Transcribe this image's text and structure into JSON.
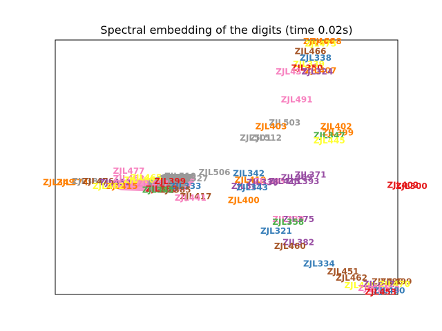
{
  "chart_data": {
    "type": "scatter",
    "title": "Spectral embedding of the digits (time 0.02s)",
    "xlabel": "",
    "ylabel": "",
    "xlim": [
      0,
      100
    ],
    "ylim": [
      0,
      100
    ],
    "axes_ticks": false,
    "grid": false,
    "points": [
      {
        "label": "ZJL466",
        "x": 77.0,
        "y": 99.5,
        "color": "#ff7f00"
      },
      {
        "label": "ZJL448",
        "x": 79.0,
        "y": 99.5,
        "color": "#ff7f00"
      },
      {
        "label": "ZJL473",
        "x": 77.5,
        "y": 98.5,
        "color": "#ffff33"
      },
      {
        "label": "ZJL466",
        "x": 74.5,
        "y": 95.5,
        "color": "#a65628"
      },
      {
        "label": "ZJL338",
        "x": 76.0,
        "y": 93.0,
        "color": "#377eb8"
      },
      {
        "label": "ZJL339",
        "x": 74.0,
        "y": 90.5,
        "color": "#ffff33"
      },
      {
        "label": "ZJL350",
        "x": 73.5,
        "y": 89.0,
        "color": "#e41a1c"
      },
      {
        "label": "ZJL437",
        "x": 69.0,
        "y": 87.5,
        "color": "#f781bf"
      },
      {
        "label": "ZJL407",
        "x": 77.5,
        "y": 88.0,
        "color": "#ff7f00"
      },
      {
        "label": "ZJL324",
        "x": 76.5,
        "y": 87.5,
        "color": "#984ea3"
      },
      {
        "label": "ZJL491",
        "x": 70.5,
        "y": 76.5,
        "color": "#f781bf"
      },
      {
        "label": "ZJL503",
        "x": 67.0,
        "y": 67.5,
        "color": "#999999"
      },
      {
        "label": "ZJL403",
        "x": 63.0,
        "y": 66.0,
        "color": "#ff7f00"
      },
      {
        "label": "ZJL402",
        "x": 82.0,
        "y": 66.0,
        "color": "#ff7f00"
      },
      {
        "label": "ZJL399",
        "x": 82.5,
        "y": 63.5,
        "color": "#ff7f00"
      },
      {
        "label": "ZJL347",
        "x": 80.0,
        "y": 62.5,
        "color": "#4daf4a"
      },
      {
        "label": "ZJL445",
        "x": 80.0,
        "y": 60.5,
        "color": "#ffff33"
      },
      {
        "label": "ZJL501",
        "x": 58.5,
        "y": 61.5,
        "color": "#999999"
      },
      {
        "label": "ZJL512",
        "x": 61.5,
        "y": 61.5,
        "color": "#999999"
      },
      {
        "label": "ZJL342",
        "x": 56.5,
        "y": 47.5,
        "color": "#377eb8"
      },
      {
        "label": "ZJL506",
        "x": 46.5,
        "y": 48.0,
        "color": "#999999"
      },
      {
        "label": "ZJL510",
        "x": 36.5,
        "y": 46.5,
        "color": "#999999"
      },
      {
        "label": "ZJL527",
        "x": 40.0,
        "y": 45.5,
        "color": "#999999"
      },
      {
        "label": "ZJL477",
        "x": 21.5,
        "y": 48.5,
        "color": "#f781bf"
      },
      {
        "label": "ZJL419",
        "x": 57.0,
        "y": 45.0,
        "color": "#ff7f00"
      },
      {
        "label": "ZJL383",
        "x": 62.5,
        "y": 44.5,
        "color": "#f781bf"
      },
      {
        "label": "ZJL336",
        "x": 60.5,
        "y": 44.0,
        "color": "#984ea3"
      },
      {
        "label": "ZJL311",
        "x": 56.0,
        "y": 42.5,
        "color": "#984ea3"
      },
      {
        "label": "ZJL343",
        "x": 57.5,
        "y": 42.0,
        "color": "#377eb8"
      },
      {
        "label": "ZJL371",
        "x": 74.5,
        "y": 47.0,
        "color": "#984ea3"
      },
      {
        "label": "ZJL369",
        "x": 70.5,
        "y": 46.0,
        "color": "#984ea3"
      },
      {
        "label": "ZJL393",
        "x": 72.5,
        "y": 44.5,
        "color": "#984ea3"
      },
      {
        "label": "ZJL413",
        "x": 67.0,
        "y": 44.5,
        "color": "#984ea3"
      },
      {
        "label": "ZJL400",
        "x": 55.0,
        "y": 37.0,
        "color": "#ff7f00"
      },
      {
        "label": "ZJL402",
        "x": 101.5,
        "y": 43.0,
        "color": "#e41a1c"
      },
      {
        "label": "ZJL300",
        "x": 104.0,
        "y": 42.5,
        "color": "#e41a1c"
      },
      {
        "label": "ZJL349",
        "x": 1.0,
        "y": 44.0,
        "color": "#ff7f00"
      },
      {
        "label": "ZJL374",
        "x": 5.0,
        "y": 44.0,
        "color": "#ff7f00"
      },
      {
        "label": "ZJL388",
        "x": 9.5,
        "y": 44.5,
        "color": "#999999"
      },
      {
        "label": "ZJL476",
        "x": 12.5,
        "y": 44.5,
        "color": "#a65628"
      },
      {
        "label": "ZJL452",
        "x": 17.5,
        "y": 44.0,
        "color": "#984ea3"
      },
      {
        "label": "ZJL463",
        "x": 21.5,
        "y": 45.5,
        "color": "#f781bf"
      },
      {
        "label": "ZJL480",
        "x": 24.5,
        "y": 45.0,
        "color": "#ffff33"
      },
      {
        "label": "ZJL465",
        "x": 26.5,
        "y": 46.0,
        "color": "#ffff33"
      },
      {
        "label": "ZJL415",
        "x": 19.5,
        "y": 42.5,
        "color": "#ff7f00"
      },
      {
        "label": "ZJL462",
        "x": 15.5,
        "y": 42.5,
        "color": "#ffff33"
      },
      {
        "label": "ZJL497",
        "x": 28.5,
        "y": 43.5,
        "color": "#f781bf"
      },
      {
        "label": "ZJL399",
        "x": 33.5,
        "y": 44.5,
        "color": "#e41a1c"
      },
      {
        "label": "ZJL386",
        "x": 31.0,
        "y": 41.5,
        "color": "#e41a1c"
      },
      {
        "label": "ZJL333",
        "x": 38.0,
        "y": 42.5,
        "color": "#377eb8"
      },
      {
        "label": "ZJL385",
        "x": 35.0,
        "y": 41.0,
        "color": "#a65628"
      },
      {
        "label": "ZJL345",
        "x": 30.0,
        "y": 41.0,
        "color": "#4daf4a"
      },
      {
        "label": "ZJL417",
        "x": 41.0,
        "y": 38.5,
        "color": "#a65628"
      },
      {
        "label": "ZJL441",
        "x": 39.5,
        "y": 38.0,
        "color": "#f781bf"
      },
      {
        "label": "ZJL375",
        "x": 71.0,
        "y": 29.5,
        "color": "#984ea3"
      },
      {
        "label": "ZJL330",
        "x": 68.0,
        "y": 29.5,
        "color": "#f781bf"
      },
      {
        "label": "ZJL358",
        "x": 68.0,
        "y": 28.5,
        "color": "#4daf4a"
      },
      {
        "label": "ZJL321",
        "x": 64.5,
        "y": 25.0,
        "color": "#377eb8"
      },
      {
        "label": "ZJL382",
        "x": 71.0,
        "y": 20.5,
        "color": "#984ea3"
      },
      {
        "label": "ZJL460",
        "x": 68.5,
        "y": 19.0,
        "color": "#a65628"
      },
      {
        "label": "ZJL334",
        "x": 77.0,
        "y": 12.0,
        "color": "#377eb8"
      },
      {
        "label": "ZJL451",
        "x": 84.0,
        "y": 9.0,
        "color": "#a65628"
      },
      {
        "label": "ZJL462",
        "x": 86.5,
        "y": 6.5,
        "color": "#a65628"
      },
      {
        "label": "ZJL488",
        "x": 97.0,
        "y": 5.0,
        "color": "#a65628"
      },
      {
        "label": "ZJL499",
        "x": 99.5,
        "y": 5.0,
        "color": "#a65628"
      },
      {
        "label": "ZJL493",
        "x": 89.0,
        "y": 3.5,
        "color": "#ffff33"
      },
      {
        "label": "ZJL472",
        "x": 94.5,
        "y": 4.0,
        "color": "#984ea3"
      },
      {
        "label": "ZJL470",
        "x": 99.0,
        "y": 4.0,
        "color": "#ffff33"
      },
      {
        "label": "ZJL455",
        "x": 93.0,
        "y": 2.5,
        "color": "#f781bf"
      },
      {
        "label": "ZJL458",
        "x": 96.0,
        "y": 2.0,
        "color": "#f781bf"
      },
      {
        "label": "ZJL480",
        "x": 97.5,
        "y": 1.5,
        "color": "#377eb8"
      },
      {
        "label": "ZJL453",
        "x": 95.0,
        "y": 1.0,
        "color": "#e41a1c"
      }
    ]
  }
}
